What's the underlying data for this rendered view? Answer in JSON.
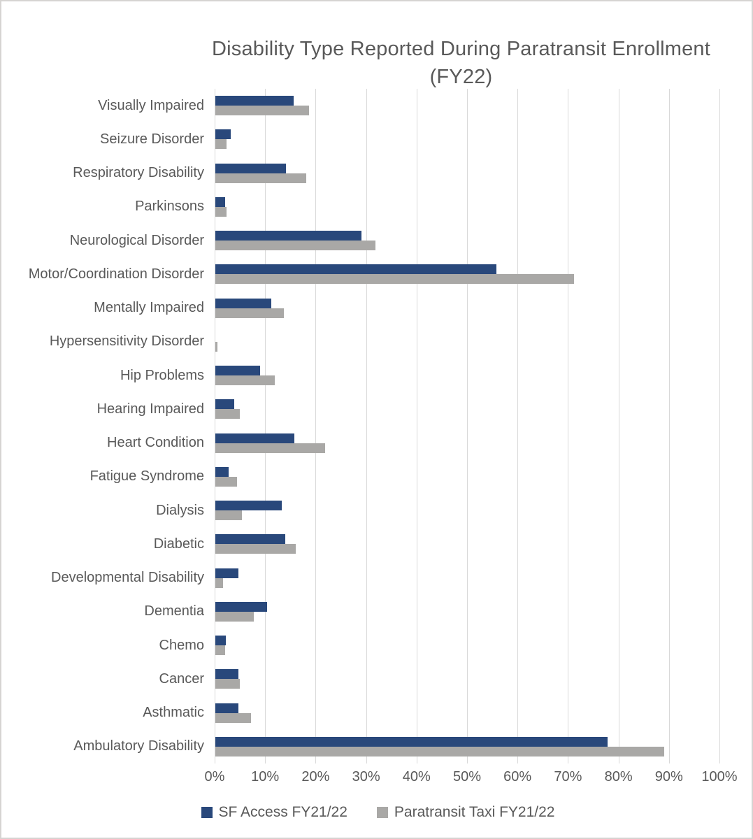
{
  "chart_data": {
    "type": "bar",
    "orientation": "horizontal",
    "title": "Disability Type Reported During Paratransit Enrollment (FY22)",
    "title_lines": [
      "Disability Type Reported During Paratransit Enrollment",
      "(FY22)"
    ],
    "categories": [
      "Visually Impaired",
      "Seizure Disorder",
      "Respiratory Disability",
      "Parkinsons",
      "Neurological Disorder",
      "Motor/Coordination Disorder",
      "Mentally Impaired",
      "Hypersensitivity Disorder",
      "Hip Problems",
      "Hearing Impaired",
      "Heart Condition",
      "Fatigue Syndrome",
      "Dialysis",
      "Diabetic",
      "Developmental Disability",
      "Dementia",
      "Chemo",
      "Cancer",
      "Asthmatic",
      "Ambulatory Disability"
    ],
    "series": [
      {
        "name": "SF Access FY21/22",
        "color": "#29487B",
        "values": [
          15.5,
          3.0,
          14.0,
          2.0,
          29.0,
          55.7,
          11.1,
          0.0,
          8.8,
          3.8,
          15.6,
          2.7,
          13.2,
          13.9,
          4.6,
          10.3,
          2.1,
          4.6,
          4.6,
          77.7
        ]
      },
      {
        "name": "Paratransit Taxi FY21/22",
        "color": "#A9A8A6",
        "values": [
          18.5,
          2.2,
          18.0,
          2.2,
          31.7,
          71.0,
          13.6,
          0.4,
          11.8,
          4.9,
          21.7,
          4.3,
          5.2,
          15.9,
          1.5,
          7.6,
          1.9,
          4.8,
          7.1,
          88.9
        ]
      }
    ],
    "x_axis": {
      "min": 0,
      "max": 100,
      "step": 10,
      "unit": "%",
      "ticks": [
        "0%",
        "10%",
        "20%",
        "30%",
        "40%",
        "50%",
        "60%",
        "70%",
        "80%",
        "90%",
        "100%"
      ]
    },
    "grid": true,
    "legend_position": "bottom",
    "colors": {
      "gridline": "#d9d9d9",
      "text": "#595959",
      "background": "#ffffff"
    }
  }
}
